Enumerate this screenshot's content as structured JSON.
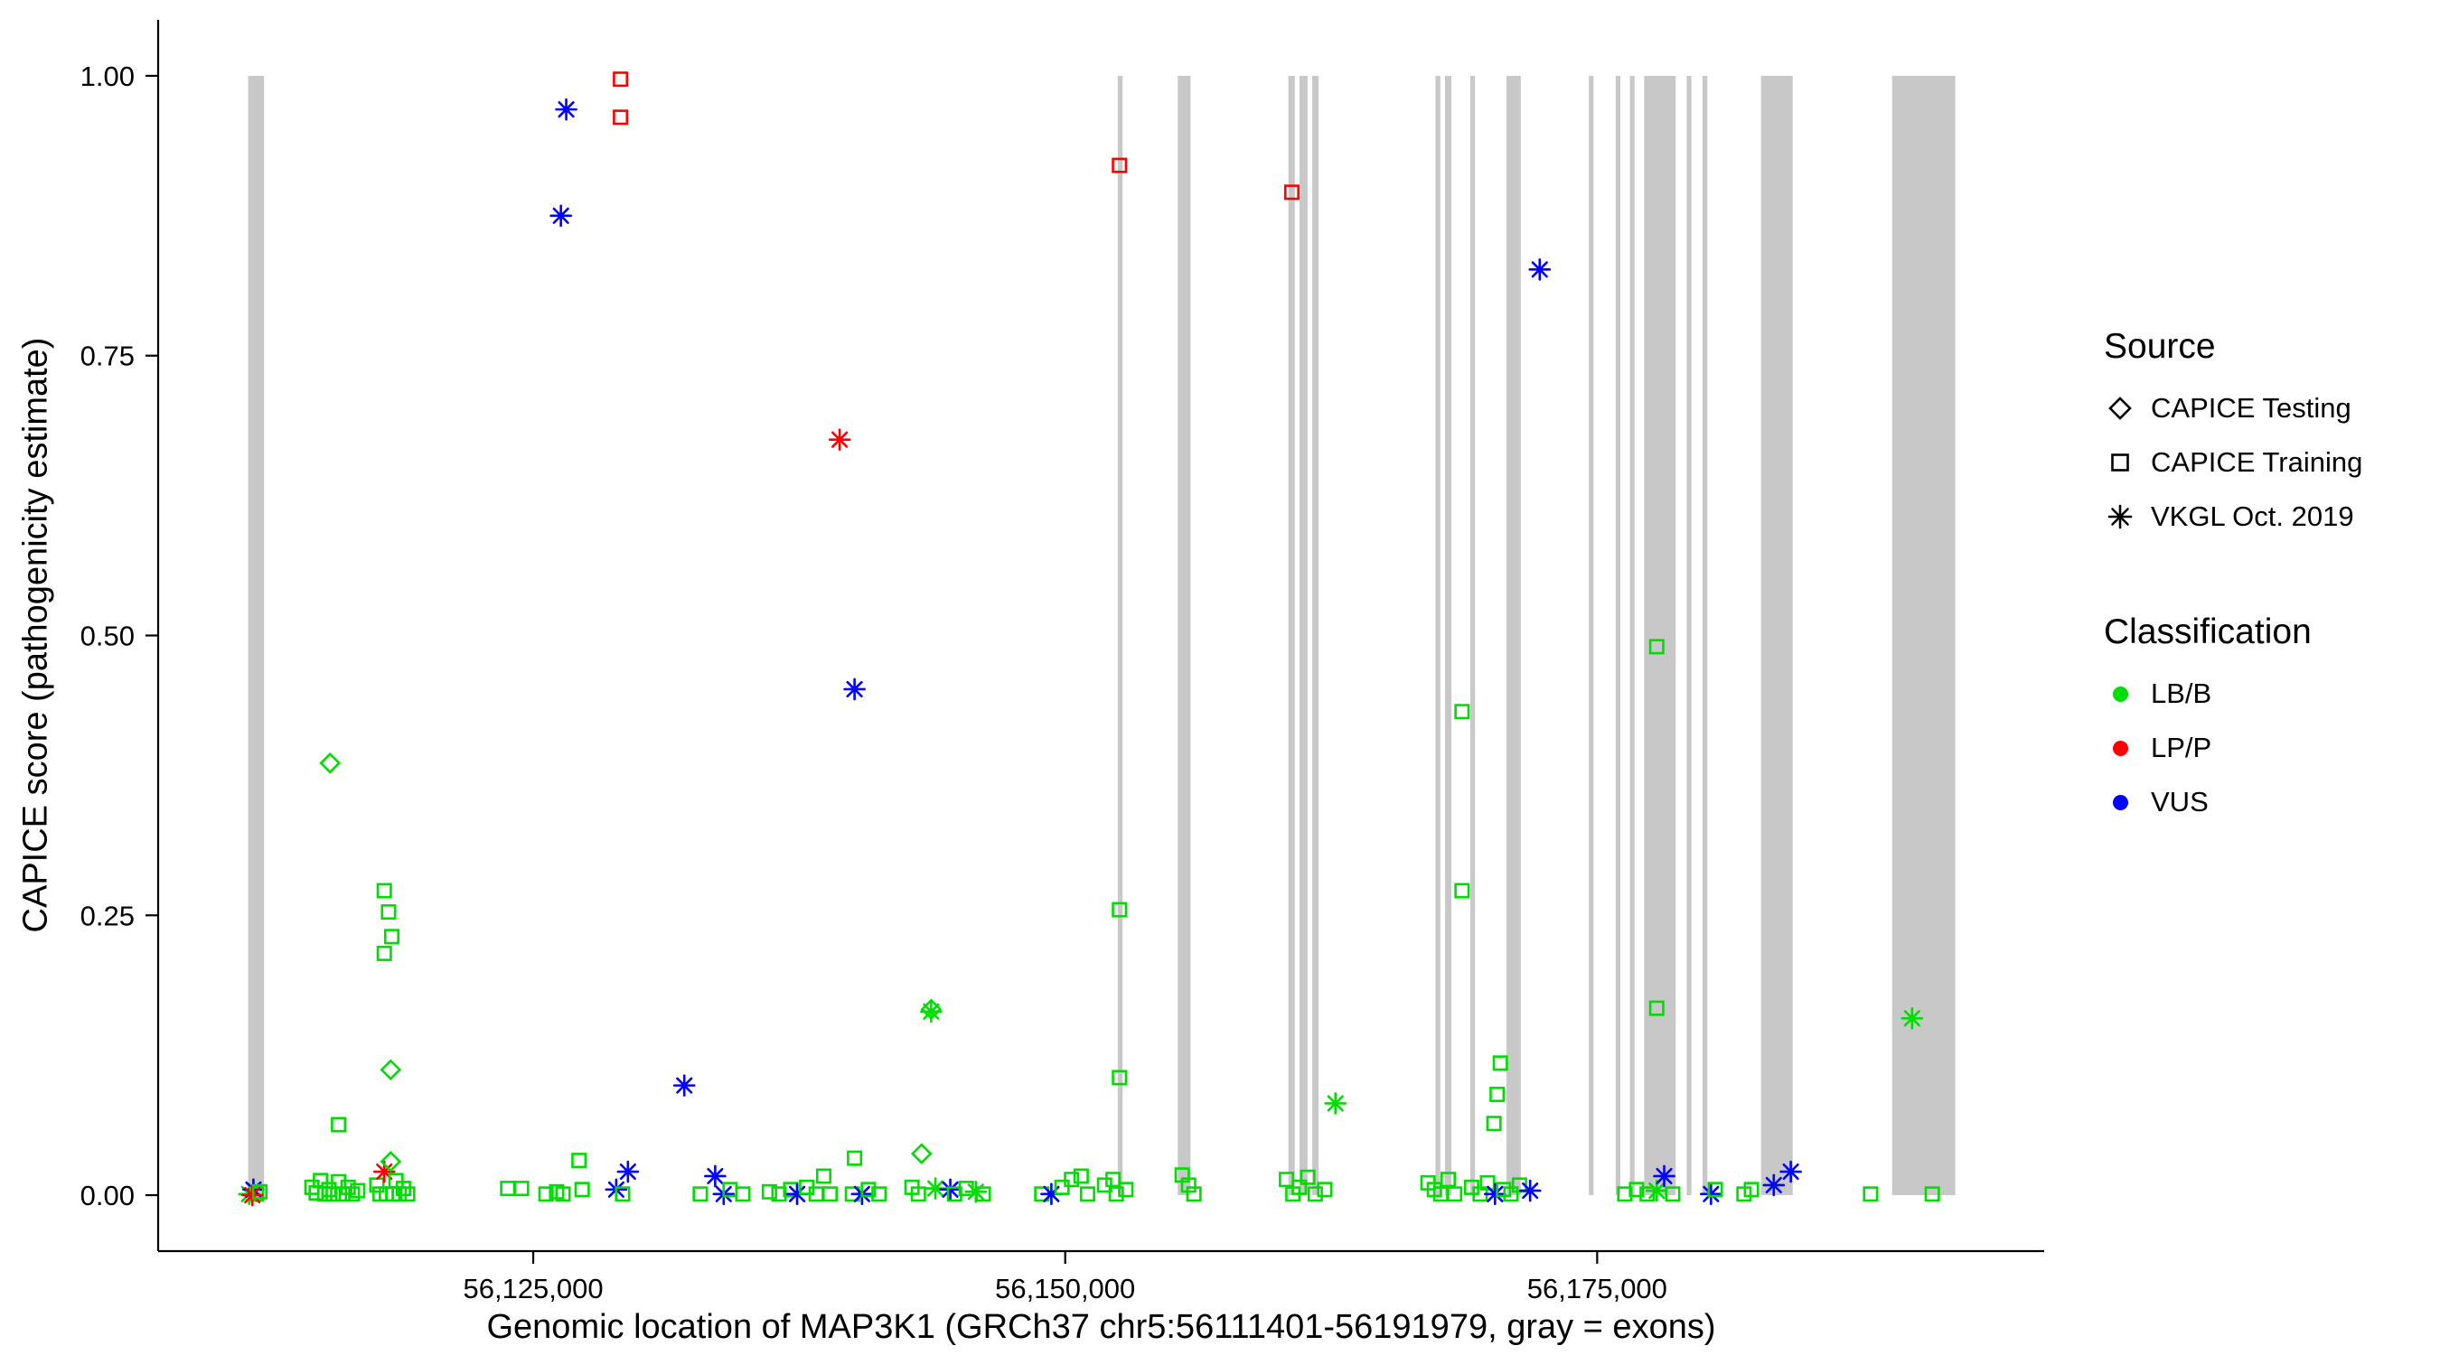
{
  "figure": {
    "xlabel": "Genomic location of MAP3K1 (GRCh37 chr5:56111401-56191979, gray = exons)",
    "ylabel": "CAPICE score (pathogenicity estimate)"
  },
  "legend": {
    "source": {
      "title": "Source",
      "items": [
        {
          "label": "CAPICE Testing",
          "marker": "diamond"
        },
        {
          "label": "CAPICE Training",
          "marker": "square"
        },
        {
          "label": "VKGL Oct. 2019",
          "marker": "asterisk"
        }
      ]
    },
    "classification": {
      "title": "Classification",
      "items": [
        {
          "label": "LB/B",
          "color_key": "LB/B"
        },
        {
          "label": "LP/P",
          "color_key": "LP/P"
        },
        {
          "label": "VUS",
          "color_key": "VUS"
        }
      ]
    }
  },
  "chart_data": {
    "type": "scatter",
    "title": "",
    "xlabel": "Genomic location of MAP3K1 (GRCh37 chr5:56111401-56191979, gray = exons)",
    "ylabel": "CAPICE score (pathogenicity estimate)",
    "x_domain": [
      56107372,
      56196008
    ],
    "y_domain": [
      -0.05,
      1.05
    ],
    "x_ticks": [
      {
        "value": 56125000,
        "label": "56,125,000"
      },
      {
        "value": 56150000,
        "label": "56,150,000"
      },
      {
        "value": 56175000,
        "label": "56,175,000"
      }
    ],
    "y_ticks": [
      {
        "value": 0.0,
        "label": "0.00"
      },
      {
        "value": 0.25,
        "label": "0.25"
      },
      {
        "value": 0.5,
        "label": "0.50"
      },
      {
        "value": 0.75,
        "label": "0.75"
      },
      {
        "value": 1.0,
        "label": "1.00"
      }
    ],
    "grid": false,
    "legend_position": "right",
    "exon_color": "#c8c8c8",
    "colors": {
      "LB/B": "#00dd00",
      "LP/P": "#ff0000",
      "VUS": "#0000ff"
    },
    "marker_codes": {
      "d": "diamond",
      "s": "square",
      "a": "asterisk"
    },
    "source_by_marker": {
      "diamond": "CAPICE Testing",
      "square": "CAPICE Training",
      "asterisk": "VKGL Oct. 2019"
    },
    "class_codes": {
      "g": "LB/B",
      "r": "LP/P",
      "b": "VUS"
    },
    "exons": [
      [
        56111600,
        56112350
      ],
      [
        56152470,
        56152700
      ],
      [
        56155290,
        56155890
      ],
      [
        56160490,
        56160790
      ],
      [
        56161010,
        56161390
      ],
      [
        56161610,
        56161910
      ],
      [
        56167400,
        56167630
      ],
      [
        56167850,
        56168150
      ],
      [
        56169040,
        56169260
      ],
      [
        56170740,
        56171410
      ],
      [
        56174610,
        56174830
      ],
      [
        56175870,
        56176090
      ],
      [
        56176540,
        56176760
      ],
      [
        56177210,
        56178690
      ],
      [
        56179210,
        56179430
      ],
      [
        56179950,
        56180180
      ],
      [
        56182700,
        56184190
      ],
      [
        56188860,
        56191830
      ]
    ],
    "points": [
      [
        56129100,
        0.997,
        "s",
        "r"
      ],
      [
        56129100,
        0.963,
        "s",
        "r"
      ],
      [
        56152550,
        0.92,
        "s",
        "r"
      ],
      [
        56160650,
        0.896,
        "s",
        "r"
      ],
      [
        56139400,
        0.675,
        "a",
        "r"
      ],
      [
        56126550,
        0.97,
        "a",
        "b"
      ],
      [
        56126300,
        0.875,
        "a",
        "b"
      ],
      [
        56172300,
        0.827,
        "a",
        "b"
      ],
      [
        56140100,
        0.452,
        "a",
        "b"
      ],
      [
        56132100,
        0.098,
        "a",
        "b"
      ],
      [
        56115450,
        0.386,
        "d",
        "g"
      ],
      [
        56118000,
        0.272,
        "s",
        "g"
      ],
      [
        56118200,
        0.253,
        "s",
        "g"
      ],
      [
        56118350,
        0.231,
        "s",
        "g"
      ],
      [
        56118000,
        0.216,
        "s",
        "g"
      ],
      [
        56118300,
        0.112,
        "d",
        "g"
      ],
      [
        56168650,
        0.432,
        "s",
        "g"
      ],
      [
        56168650,
        0.272,
        "s",
        "g"
      ],
      [
        56177800,
        0.49,
        "s",
        "g"
      ],
      [
        56177800,
        0.167,
        "s",
        "g"
      ],
      [
        56152550,
        0.255,
        "s",
        "g"
      ],
      [
        56152550,
        0.105,
        "s",
        "g"
      ],
      [
        56143700,
        0.166,
        "d",
        "g"
      ],
      [
        56143700,
        0.164,
        "a",
        "g"
      ],
      [
        56189800,
        0.158,
        "a",
        "g"
      ],
      [
        56162700,
        0.082,
        "a",
        "g"
      ],
      [
        56170450,
        0.118,
        "s",
        "g"
      ],
      [
        56170300,
        0.09,
        "s",
        "g"
      ],
      [
        56170150,
        0.064,
        "s",
        "g"
      ],
      [
        56143250,
        0.037,
        "d",
        "g"
      ],
      [
        56140100,
        0.033,
        "s",
        "g"
      ],
      [
        56115850,
        0.063,
        "s",
        "g"
      ],
      [
        56111650,
        0.001,
        "a",
        "g"
      ],
      [
        56111850,
        0.005,
        "a",
        "b"
      ],
      [
        56112000,
        0.001,
        "s",
        "g"
      ],
      [
        56111800,
        0.0,
        "a",
        "r"
      ],
      [
        56112150,
        0.003,
        "s",
        "g"
      ],
      [
        56114600,
        0.007,
        "s",
        "g"
      ],
      [
        56114800,
        0.002,
        "s",
        "g"
      ],
      [
        56115000,
        0.013,
        "s",
        "g"
      ],
      [
        56115200,
        0.001,
        "s",
        "g"
      ],
      [
        56115400,
        0.005,
        "s",
        "g"
      ],
      [
        56115600,
        0.001,
        "s",
        "g"
      ],
      [
        56115850,
        0.012,
        "s",
        "g"
      ],
      [
        56116050,
        0.001,
        "s",
        "g"
      ],
      [
        56116300,
        0.007,
        "s",
        "g"
      ],
      [
        56116500,
        0.001,
        "s",
        "g"
      ],
      [
        56116750,
        0.004,
        "s",
        "g"
      ],
      [
        56117650,
        0.009,
        "s",
        "g"
      ],
      [
        56117800,
        0.001,
        "s",
        "g"
      ],
      [
        56118000,
        0.021,
        "a",
        "r"
      ],
      [
        56118100,
        0.001,
        "s",
        "g"
      ],
      [
        56118300,
        0.03,
        "d",
        "g"
      ],
      [
        56118400,
        0.001,
        "s",
        "g"
      ],
      [
        56118550,
        0.013,
        "s",
        "g"
      ],
      [
        56118700,
        0.001,
        "s",
        "g"
      ],
      [
        56118900,
        0.006,
        "s",
        "g"
      ],
      [
        56119100,
        0.001,
        "s",
        "g"
      ],
      [
        56123800,
        0.006,
        "s",
        "g"
      ],
      [
        56124450,
        0.006,
        "s",
        "g"
      ],
      [
        56125600,
        0.001,
        "s",
        "g"
      ],
      [
        56126100,
        0.003,
        "s",
        "g"
      ],
      [
        56126400,
        0.001,
        "s",
        "g"
      ],
      [
        56127150,
        0.031,
        "s",
        "g"
      ],
      [
        56127300,
        0.005,
        "s",
        "g"
      ],
      [
        56128900,
        0.005,
        "a",
        "b"
      ],
      [
        56129450,
        0.021,
        "a",
        "b"
      ],
      [
        56129200,
        0.001,
        "s",
        "g"
      ],
      [
        56132850,
        0.001,
        "s",
        "g"
      ],
      [
        56133550,
        0.017,
        "a",
        "b"
      ],
      [
        56133950,
        0.001,
        "a",
        "b"
      ],
      [
        56134250,
        0.005,
        "s",
        "g"
      ],
      [
        56134850,
        0.001,
        "s",
        "g"
      ],
      [
        56136100,
        0.003,
        "s",
        "g"
      ],
      [
        56136550,
        0.001,
        "s",
        "g"
      ],
      [
        56137100,
        0.005,
        "s",
        "g"
      ],
      [
        56137400,
        0.001,
        "a",
        "b"
      ],
      [
        56137850,
        0.007,
        "s",
        "g"
      ],
      [
        56138300,
        0.001,
        "s",
        "g"
      ],
      [
        56138650,
        0.017,
        "s",
        "g"
      ],
      [
        56138950,
        0.001,
        "s",
        "g"
      ],
      [
        56140000,
        0.001,
        "s",
        "g"
      ],
      [
        56140450,
        0.001,
        "a",
        "b"
      ],
      [
        56140750,
        0.005,
        "s",
        "g"
      ],
      [
        56141250,
        0.001,
        "s",
        "g"
      ],
      [
        56142800,
        0.007,
        "s",
        "g"
      ],
      [
        56143100,
        0.001,
        "s",
        "g"
      ],
      [
        56143900,
        0.006,
        "a",
        "g"
      ],
      [
        56144600,
        0.005,
        "a",
        "b"
      ],
      [
        56144800,
        0.001,
        "s",
        "g"
      ],
      [
        56145350,
        0.006,
        "s",
        "g"
      ],
      [
        56145800,
        0.003,
        "a",
        "g"
      ],
      [
        56146150,
        0.001,
        "s",
        "g"
      ],
      [
        56148900,
        0.001,
        "s",
        "g"
      ],
      [
        56149350,
        0.001,
        "a",
        "b"
      ],
      [
        56149850,
        0.007,
        "s",
        "g"
      ],
      [
        56150300,
        0.014,
        "s",
        "g"
      ],
      [
        56150750,
        0.017,
        "s",
        "g"
      ],
      [
        56151050,
        0.001,
        "s",
        "g"
      ],
      [
        56151850,
        0.009,
        "s",
        "g"
      ],
      [
        56152250,
        0.014,
        "s",
        "g"
      ],
      [
        56152400,
        0.001,
        "s",
        "g"
      ],
      [
        56152850,
        0.005,
        "s",
        "g"
      ],
      [
        56155500,
        0.018,
        "s",
        "g"
      ],
      [
        56155800,
        0.009,
        "s",
        "g"
      ],
      [
        56156050,
        0.001,
        "s",
        "g"
      ],
      [
        56160400,
        0.014,
        "s",
        "g"
      ],
      [
        56160700,
        0.001,
        "s",
        "g"
      ],
      [
        56161000,
        0.007,
        "s",
        "g"
      ],
      [
        56161400,
        0.016,
        "s",
        "g"
      ],
      [
        56161750,
        0.001,
        "s",
        "g"
      ],
      [
        56162200,
        0.005,
        "s",
        "g"
      ],
      [
        56167050,
        0.011,
        "s",
        "g"
      ],
      [
        56167350,
        0.005,
        "s",
        "g"
      ],
      [
        56167650,
        0.001,
        "s",
        "g"
      ],
      [
        56168000,
        0.014,
        "s",
        "g"
      ],
      [
        56168300,
        0.001,
        "s",
        "g"
      ],
      [
        56169100,
        0.007,
        "s",
        "g"
      ],
      [
        56169500,
        0.001,
        "s",
        "g"
      ],
      [
        56169850,
        0.011,
        "s",
        "g"
      ],
      [
        56170200,
        0.001,
        "a",
        "b"
      ],
      [
        56170600,
        0.005,
        "s",
        "g"
      ],
      [
        56170950,
        0.001,
        "s",
        "g"
      ],
      [
        56171350,
        0.009,
        "s",
        "g"
      ],
      [
        56171850,
        0.004,
        "a",
        "b"
      ],
      [
        56176300,
        0.001,
        "s",
        "g"
      ],
      [
        56176850,
        0.005,
        "s",
        "g"
      ],
      [
        56177350,
        0.001,
        "s",
        "g"
      ],
      [
        56177800,
        0.004,
        "a",
        "g"
      ],
      [
        56178150,
        0.017,
        "a",
        "b"
      ],
      [
        56178550,
        0.001,
        "s",
        "g"
      ],
      [
        56180350,
        0.001,
        "a",
        "b"
      ],
      [
        56180550,
        0.005,
        "s",
        "g"
      ],
      [
        56181900,
        0.001,
        "s",
        "g"
      ],
      [
        56182250,
        0.005,
        "s",
        "g"
      ],
      [
        56183300,
        0.009,
        "a",
        "b"
      ],
      [
        56184100,
        0.021,
        "a",
        "b"
      ],
      [
        56187850,
        0.001,
        "s",
        "g"
      ],
      [
        56190750,
        0.001,
        "s",
        "g"
      ]
    ]
  }
}
